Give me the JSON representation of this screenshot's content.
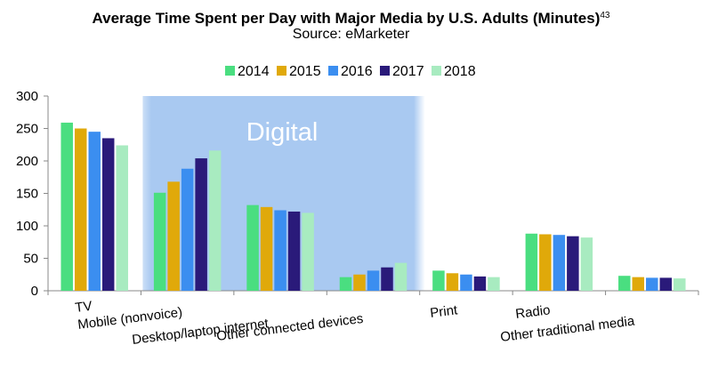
{
  "chart_data": {
    "type": "bar",
    "title": "Average Time Spent per Day with Major Media by U.S. Adults (Minutes)",
    "title_superscript": "43",
    "subtitle": "Source: eMarketer",
    "categories": [
      "TV",
      "Mobile (nonvoice)",
      "Desktop/laptop internet",
      "Other connected devices",
      "Print",
      "Radio",
      "Other traditional media"
    ],
    "series": [
      {
        "name": "2014",
        "color": "#4ade80",
        "values": [
          259,
          151,
          132,
          21,
          31,
          88,
          23
        ]
      },
      {
        "name": "2015",
        "color": "#e0a90a",
        "values": [
          250,
          168,
          129,
          25,
          27,
          87,
          21
        ]
      },
      {
        "name": "2016",
        "color": "#3b8ef0",
        "values": [
          245,
          188,
          124,
          31,
          25,
          86,
          20
        ]
      },
      {
        "name": "2017",
        "color": "#2a1a7a",
        "values": [
          235,
          204,
          122,
          36,
          22,
          84,
          20
        ]
      },
      {
        "name": "2018",
        "color": "#a8ebc0",
        "values": [
          224,
          216,
          120,
          43,
          21,
          82,
          19
        ]
      }
    ],
    "ylim": [
      0,
      300
    ],
    "yticks": [
      0,
      50,
      100,
      150,
      200,
      250,
      300
    ],
    "grid": false,
    "legend_position": "top-center",
    "highlight_band": {
      "label": "Digital",
      "categories": [
        "Mobile (nonvoice)",
        "Desktop/laptop internet",
        "Other connected devices"
      ],
      "color": "#a9c9f1"
    }
  }
}
